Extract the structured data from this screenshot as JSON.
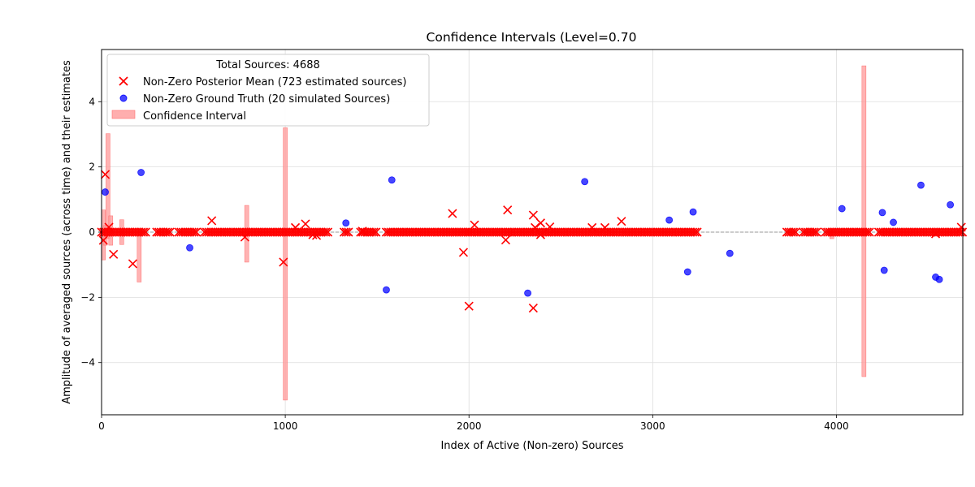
{
  "chart_data": {
    "type": "scatter",
    "title": "Confidence Intervals (Level=0.70",
    "xlabel": "Index of Active (Non-zero) Sources",
    "ylabel": "Amplitude of averaged sources (across time) and their estimates",
    "xlim": [
      0,
      4688
    ],
    "ylim": [
      -5.6,
      5.6
    ],
    "xticks": [
      0,
      1000,
      2000,
      3000,
      4000
    ],
    "yticks": [
      -4,
      -2,
      0,
      2,
      4
    ],
    "grid": true,
    "legend": {
      "position": "top-left",
      "title": "Total Sources: 4688",
      "entries": [
        "Non-Zero Posterior Mean (723 estimated sources)",
        "Non-Zero Ground Truth (20 simulated Sources)",
        "Confidence Interval"
      ]
    },
    "colors": {
      "posterior_mean": "#ff0000",
      "ground_truth": "#0000ff",
      "confidence_interval": "#ff9a9a",
      "zero_line": "#808080",
      "grid": "#dddddd"
    },
    "zero_line_y": 0,
    "ground_truth": [
      {
        "x": 20,
        "y": 1.23
      },
      {
        "x": 215,
        "y": 1.83
      },
      {
        "x": 480,
        "y": -0.48
      },
      {
        "x": 1330,
        "y": 0.28
      },
      {
        "x": 1550,
        "y": -1.77
      },
      {
        "x": 1580,
        "y": 1.6
      },
      {
        "x": 2320,
        "y": -1.87
      },
      {
        "x": 2630,
        "y": 1.55
      },
      {
        "x": 3090,
        "y": 0.37
      },
      {
        "x": 3190,
        "y": -1.22
      },
      {
        "x": 3220,
        "y": 0.62
      },
      {
        "x": 3420,
        "y": -0.65
      },
      {
        "x": 4030,
        "y": 0.72
      },
      {
        "x": 4250,
        "y": 0.6
      },
      {
        "x": 4260,
        "y": -1.17
      },
      {
        "x": 4310,
        "y": 0.3
      },
      {
        "x": 4460,
        "y": 1.44
      },
      {
        "x": 4540,
        "y": -1.38
      },
      {
        "x": 4560,
        "y": -1.45
      },
      {
        "x": 4620,
        "y": 0.84
      }
    ],
    "posterior_mean_nonzero": [
      {
        "x": 10,
        "y": -0.25
      },
      {
        "x": 20,
        "y": 1.77
      },
      {
        "x": 40,
        "y": 0.15
      },
      {
        "x": 65,
        "y": -0.68
      },
      {
        "x": 170,
        "y": -0.97
      },
      {
        "x": 600,
        "y": 0.35
      },
      {
        "x": 780,
        "y": -0.15
      },
      {
        "x": 990,
        "y": -0.92
      },
      {
        "x": 1055,
        "y": 0.14
      },
      {
        "x": 1110,
        "y": 0.25
      },
      {
        "x": 1150,
        "y": -0.08
      },
      {
        "x": 1170,
        "y": -0.1
      },
      {
        "x": 1420,
        "y": 0.03
      },
      {
        "x": 1910,
        "y": 0.57
      },
      {
        "x": 1970,
        "y": -0.62
      },
      {
        "x": 2000,
        "y": -2.27
      },
      {
        "x": 2030,
        "y": 0.22
      },
      {
        "x": 2200,
        "y": -0.24
      },
      {
        "x": 2210,
        "y": 0.68
      },
      {
        "x": 2350,
        "y": 0.52
      },
      {
        "x": 2350,
        "y": -2.33
      },
      {
        "x": 2360,
        "y": 0.14
      },
      {
        "x": 2390,
        "y": 0.28
      },
      {
        "x": 2390,
        "y": -0.08
      },
      {
        "x": 2440,
        "y": 0.16
      },
      {
        "x": 2670,
        "y": 0.14
      },
      {
        "x": 2740,
        "y": 0.14
      },
      {
        "x": 2830,
        "y": 0.33
      },
      {
        "x": 4540,
        "y": -0.05
      },
      {
        "x": 4680,
        "y": 0.15
      }
    ],
    "posterior_mean_zero_ranges": [
      [
        0,
        240
      ],
      [
        300,
        380
      ],
      [
        420,
        520
      ],
      [
        560,
        1240
      ],
      [
        1320,
        1350
      ],
      [
        1410,
        1500
      ],
      [
        1550,
        3250
      ],
      [
        3730,
        3780
      ],
      [
        3820,
        3900
      ],
      [
        3940,
        4180
      ],
      [
        4230,
        4688
      ]
    ],
    "confidence_intervals": [
      {
        "x": 10,
        "low": -0.85,
        "high": 0.68
      },
      {
        "x": 20,
        "low": -0.4,
        "high": 0.2
      },
      {
        "x": 35,
        "low": -0.2,
        "high": 3.02
      },
      {
        "x": 50,
        "low": -0.4,
        "high": 0.5
      },
      {
        "x": 110,
        "low": -0.38,
        "high": 0.38
      },
      {
        "x": 205,
        "low": -1.53,
        "high": 0.08
      },
      {
        "x": 790,
        "low": -0.92,
        "high": 0.82
      },
      {
        "x": 1000,
        "low": -5.15,
        "high": 3.2
      },
      {
        "x": 1990,
        "low": -0.1,
        "high": 0.1
      },
      {
        "x": 3975,
        "low": -0.2,
        "high": 0.1
      },
      {
        "x": 4150,
        "low": -4.43,
        "high": 5.1
      }
    ]
  }
}
